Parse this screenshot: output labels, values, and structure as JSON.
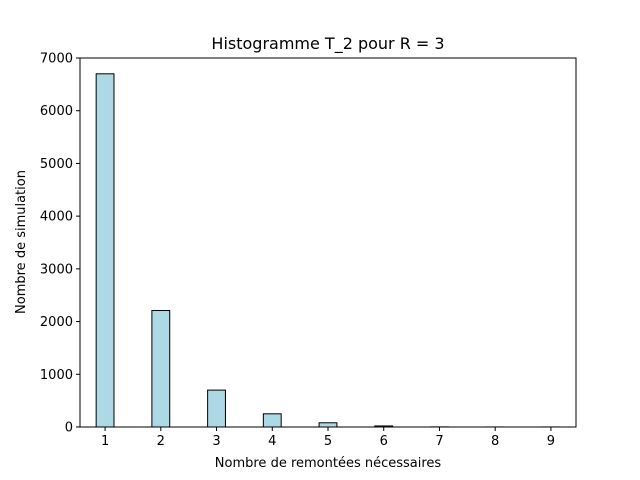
{
  "chart_data": {
    "type": "bar",
    "title": "Histogramme T_2 pour R = 3",
    "xlabel": "Nombre de remontées nécessaires",
    "ylabel": "Nombre de simulation",
    "categories": [
      1,
      2,
      3,
      4,
      5,
      6,
      7,
      8,
      9
    ],
    "values": [
      6700,
      2210,
      700,
      250,
      80,
      20,
      2,
      1,
      1
    ],
    "xlim": [
      0.55,
      9.45
    ],
    "ylim": [
      0,
      7000
    ],
    "x_ticks": [
      1,
      2,
      3,
      4,
      5,
      6,
      7,
      8,
      9
    ],
    "y_ticks": [
      0,
      1000,
      2000,
      3000,
      4000,
      5000,
      6000,
      7000
    ],
    "bar_width": 0.32,
    "bar_color": "#add8e6",
    "edge_color": "#000000",
    "grid": false,
    "legend": "none"
  }
}
